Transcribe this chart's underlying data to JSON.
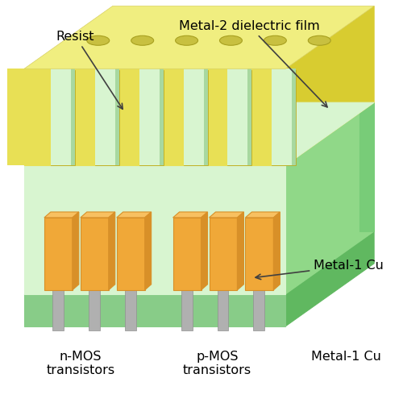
{
  "fig_width": 5.0,
  "fig_height": 5.0,
  "dpi": 100,
  "bg_color": "#ffffff",
  "colors": {
    "yellow_front_light": "#f2f07a",
    "yellow_front_mid": "#e8e055",
    "yellow_front_dark": "#d8cc30",
    "yellow_side": "#c8b820",
    "yellow_top_face": "#f0ee80",
    "yellow_hole": "#c8c040",
    "green_front_light": "#d8f5d0",
    "green_front_mid": "#c0eab0",
    "green_side_light": "#90d888",
    "green_side_mid": "#78cc78",
    "green_side_dark": "#58b858",
    "green_top": "#c8f0c0",
    "green_base_front": "#88cc88",
    "green_base_side": "#60b860",
    "orange_front": "#f0a838",
    "orange_shade": "#d89028",
    "orange_top": "#f8c060",
    "gray_stem": "#b0b0b0",
    "gray_stem_dark": "#909090",
    "arrow_color": "#404040",
    "text_color": "#000000"
  },
  "labels": {
    "resist": "Resist",
    "metal2_dielectric": "Metal-2 dielectric film",
    "nmos": "n-MOS\ntransistors",
    "pmos": "p-MOS\ntransistors",
    "metal1": "Metal-1 Cu"
  }
}
